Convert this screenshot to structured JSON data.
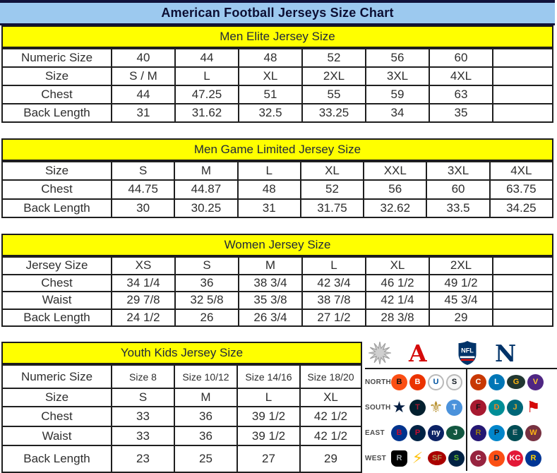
{
  "title": "American Football Jerseys Size Chart",
  "colors": {
    "title_band_bg": "#9cc9ef",
    "title_text": "#0c0e33",
    "section_band_bg": "#ffff00",
    "table_border": "#1f1f1f",
    "afc_red": "#d50a0a",
    "nfc_blue": "#013369",
    "nfl_shield_blue": "#013369"
  },
  "tables": [
    {
      "header": "Men Elite Jersey Size",
      "rows": [
        {
          "label": "Numeric Size",
          "cells": [
            "40",
            "44",
            "48",
            "52",
            "56",
            "60",
            ""
          ]
        },
        {
          "label": "Size",
          "cells": [
            "S / M",
            "L",
            "XL",
            "2XL",
            "3XL",
            "4XL",
            ""
          ]
        },
        {
          "label": "Chest",
          "cells": [
            "44",
            "47.25",
            "51",
            "55",
            "59",
            "63",
            ""
          ]
        },
        {
          "label": "Back Length",
          "cells": [
            "31",
            "31.62",
            "32.5",
            "33.25",
            "34",
            "35",
            ""
          ]
        }
      ]
    },
    {
      "header": "Men Game Limited Jersey Size",
      "rows": [
        {
          "label": "Size",
          "cells": [
            "S",
            "M",
            "L",
            "XL",
            "XXL",
            "3XL",
            "4XL"
          ]
        },
        {
          "label": "Chest",
          "cells": [
            "44.75",
            "44.87",
            "48",
            "52",
            "56",
            "60",
            "63.75"
          ]
        },
        {
          "label": "Back Length",
          "cells": [
            "30",
            "30.25",
            "31",
            "31.75",
            "32.62",
            "33.5",
            "34.25"
          ]
        }
      ]
    },
    {
      "header": "Women Jersey Size",
      "rows": [
        {
          "label": "Jersey Size",
          "cells": [
            "XS",
            "S",
            "M",
            "L",
            "XL",
            "2XL",
            ""
          ]
        },
        {
          "label": "Chest",
          "cells": [
            "34 1/4",
            "36",
            "38 3/4",
            "42 3/4",
            "46 1/2",
            "49 1/2",
            ""
          ]
        },
        {
          "label": "Waist",
          "cells": [
            "29 7/8",
            "32 5/8",
            "35 3/8",
            "38 7/8",
            "42 1/4",
            "45 3/4",
            ""
          ]
        },
        {
          "label": "Back Length",
          "cells": [
            "24 1/2",
            "26",
            "26 3/4",
            "27 1/2",
            "28 3/8",
            "29",
            ""
          ]
        }
      ]
    },
    {
      "header": "Youth Kids Jersey Size",
      "rows": [
        {
          "label": "Numeric Size",
          "cells": [
            "Size 8",
            "Size 10/12",
            "Size 14/16",
            "Size 18/20"
          ],
          "small": true
        },
        {
          "label": "Size",
          "cells": [
            "S",
            "M",
            "L",
            "XL"
          ]
        },
        {
          "label": "Chest",
          "cells": [
            "33",
            "36",
            "39 1/2",
            "42 1/2"
          ]
        },
        {
          "label": "Waist",
          "cells": [
            "33",
            "36",
            "39 1/2",
            "42 1/2"
          ]
        },
        {
          "label": "Back Length",
          "cells": [
            "23",
            "25",
            "27",
            "29"
          ]
        }
      ]
    }
  ],
  "logo_panel": {
    "icons": {
      "starburst": "starburst-icon",
      "afc_letter": "A",
      "nfl_shield_label": "NFL",
      "nfc_letter": "N"
    },
    "divisions": [
      {
        "label": "NORTH",
        "afc": [
          {
            "team": "Bengals",
            "text": "B",
            "bg": "#fb4f14",
            "fg": "#111111",
            "shape": "circle"
          },
          {
            "team": "Browns",
            "text": "B",
            "bg": "#eb3300",
            "fg": "#ffffff",
            "shape": "circle"
          },
          {
            "team": "Colts",
            "text": "U",
            "bg": "#ffffff",
            "fg": "#0053a0",
            "shape": "ring"
          },
          {
            "team": "Steelers",
            "text": "S",
            "bg": "#f7f7f7",
            "fg": "#101820",
            "shape": "ring"
          }
        ],
        "nfc": [
          {
            "team": "Bears",
            "text": "C",
            "bg": "#c83803",
            "fg": "#ffffff",
            "shape": "circle"
          },
          {
            "team": "Lions",
            "text": "L",
            "bg": "#0076b6",
            "fg": "#ffffff",
            "shape": "circle"
          },
          {
            "team": "Packers",
            "text": "G",
            "bg": "#203731",
            "fg": "#ffb612",
            "shape": "oval"
          },
          {
            "team": "Vikings",
            "text": "V",
            "bg": "#4f2683",
            "fg": "#ffc62f",
            "shape": "circle"
          }
        ]
      },
      {
        "label": "SOUTH",
        "afc": [
          {
            "team": "Cowboys",
            "text": "★",
            "fg": "#041e42",
            "shape": "glyph"
          },
          {
            "team": "Texans",
            "text": "T",
            "bg": "#03202f",
            "fg": "#a71930",
            "shape": "circle"
          },
          {
            "team": "Saints",
            "text": "⚜",
            "fg": "#b8912f",
            "shape": "glyph"
          },
          {
            "team": "Titans",
            "text": "T",
            "bg": "#4b92db",
            "fg": "#ffffff",
            "shape": "circle"
          }
        ],
        "nfc": [
          {
            "team": "Falcons",
            "text": "F",
            "bg": "#a71930",
            "fg": "#111111",
            "shape": "circle"
          },
          {
            "team": "Dolphins",
            "text": "D",
            "bg": "#008e97",
            "fg": "#f58220",
            "shape": "circle"
          },
          {
            "team": "Jaguars",
            "text": "J",
            "bg": "#006778",
            "fg": "#d7a22a",
            "shape": "circle"
          },
          {
            "team": "Buccaneers",
            "text": "⚑",
            "fg": "#d50a0a",
            "shape": "glyph"
          }
        ]
      },
      {
        "label": "EAST",
        "afc": [
          {
            "team": "Bills",
            "text": "B",
            "bg": "#00338d",
            "fg": "#c60c30",
            "shape": "circle"
          },
          {
            "team": "Patriots",
            "text": "P",
            "bg": "#002244",
            "fg": "#c60c30",
            "shape": "circle"
          },
          {
            "team": "Giants",
            "text": "ny",
            "bg": "#0b2265",
            "fg": "#ffffff",
            "shape": "circle"
          },
          {
            "team": "Jets",
            "text": "J",
            "bg": "#125740",
            "fg": "#ffffff",
            "shape": "oval"
          }
        ],
        "nfc": [
          {
            "team": "Ravens",
            "text": "R",
            "bg": "#241773",
            "fg": "#9e7c0c",
            "shape": "circle"
          },
          {
            "team": "Panthers",
            "text": "P",
            "bg": "#0085ca",
            "fg": "#101820",
            "shape": "circle"
          },
          {
            "team": "Eagles",
            "text": "E",
            "bg": "#004c54",
            "fg": "#a5acaf",
            "shape": "circle"
          },
          {
            "team": "Redskins",
            "text": "W",
            "bg": "#773141",
            "fg": "#ffb612",
            "shape": "circle"
          }
        ]
      },
      {
        "label": "WEST",
        "afc": [
          {
            "team": "Raiders",
            "text": "R",
            "bg": "#000000",
            "fg": "#a5acaf",
            "shape": "shield"
          },
          {
            "team": "Chargers",
            "text": "⚡",
            "fg": "#ffc20e",
            "shape": "glyph"
          },
          {
            "team": "49ers",
            "text": "SF",
            "bg": "#aa0000",
            "fg": "#b3995d",
            "shape": "oval"
          },
          {
            "team": "Seahawks",
            "text": "S",
            "bg": "#002244",
            "fg": "#69be28",
            "shape": "circle"
          }
        ],
        "nfc": [
          {
            "team": "Cardinals",
            "text": "C",
            "bg": "#97233f",
            "fg": "#ffffff",
            "shape": "circle"
          },
          {
            "team": "Broncos",
            "text": "D",
            "bg": "#fb4f14",
            "fg": "#002244",
            "shape": "circle"
          },
          {
            "team": "Chiefs",
            "text": "KC",
            "bg": "#e31837",
            "fg": "#ffffff",
            "shape": "circle"
          },
          {
            "team": "Rams",
            "text": "R",
            "bg": "#003594",
            "fg": "#ffd100",
            "shape": "circle"
          }
        ]
      }
    ]
  }
}
